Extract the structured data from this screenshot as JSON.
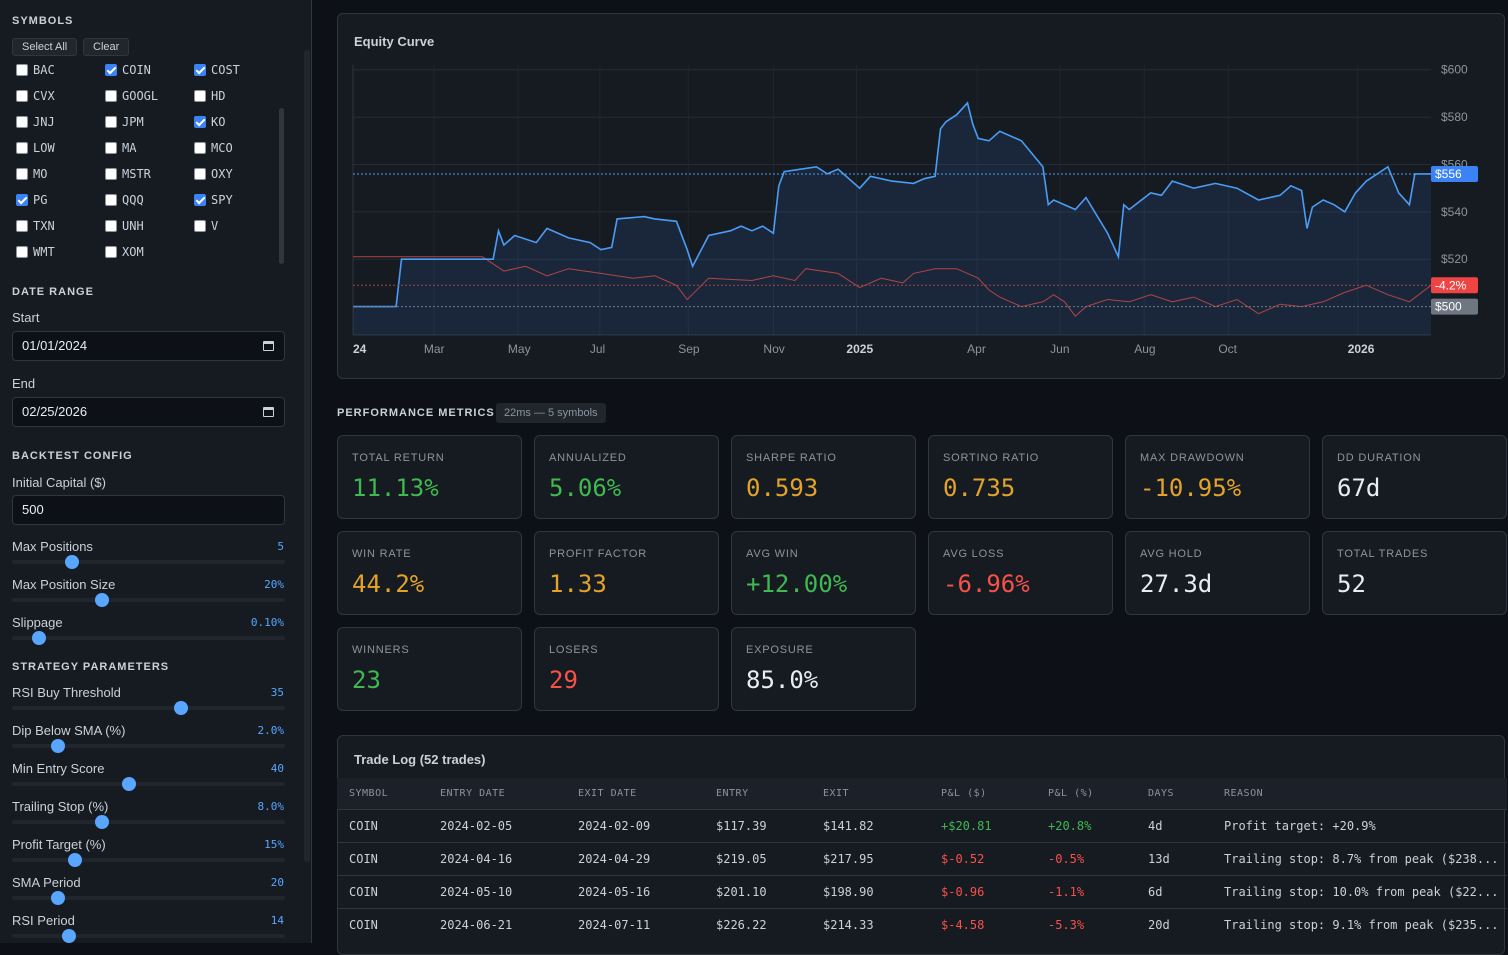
{
  "sidebar": {
    "symbols_title": "SYMBOLS",
    "select_all": "Select All",
    "clear": "Clear",
    "symbols": [
      {
        "name": "BAC",
        "checked": false
      },
      {
        "name": "COIN",
        "checked": true
      },
      {
        "name": "COST",
        "checked": true
      },
      {
        "name": "CVX",
        "checked": false
      },
      {
        "name": "GOOGL",
        "checked": false
      },
      {
        "name": "HD",
        "checked": false
      },
      {
        "name": "JNJ",
        "checked": false
      },
      {
        "name": "JPM",
        "checked": false
      },
      {
        "name": "KO",
        "checked": true
      },
      {
        "name": "LOW",
        "checked": false
      },
      {
        "name": "MA",
        "checked": false
      },
      {
        "name": "MCO",
        "checked": false
      },
      {
        "name": "MO",
        "checked": false
      },
      {
        "name": "MSTR",
        "checked": false
      },
      {
        "name": "OXY",
        "checked": false
      },
      {
        "name": "PG",
        "checked": true
      },
      {
        "name": "QQQ",
        "checked": false
      },
      {
        "name": "SPY",
        "checked": true
      },
      {
        "name": "TXN",
        "checked": false
      },
      {
        "name": "UNH",
        "checked": false
      },
      {
        "name": "V",
        "checked": false
      },
      {
        "name": "WMT",
        "checked": false
      },
      {
        "name": "XOM",
        "checked": false
      }
    ],
    "date_range_title": "DATE RANGE",
    "start_label": "Start",
    "start_value": "01/01/2024",
    "end_label": "End",
    "end_value": "02/25/2026",
    "backtest_title": "BACKTEST CONFIG",
    "capital_label": "Initial Capital ($)",
    "capital_value": "500",
    "backtest_sliders": [
      {
        "label": "Max Positions",
        "value": "5",
        "fraction": 0.22
      },
      {
        "label": "Max Position Size",
        "value": "20%",
        "fraction": 0.33
      },
      {
        "label": "Slippage",
        "value": "0.10%",
        "fraction": 0.1
      }
    ],
    "strategy_title": "STRATEGY PARAMETERS",
    "strategy_sliders": [
      {
        "label": "RSI Buy Threshold",
        "value": "35",
        "fraction": 0.62
      },
      {
        "label": "Dip Below SMA (%)",
        "value": "2.0%",
        "fraction": 0.17
      },
      {
        "label": "Min Entry Score",
        "value": "40",
        "fraction": 0.43
      },
      {
        "label": "Trailing Stop (%)",
        "value": "8.0%",
        "fraction": 0.33
      },
      {
        "label": "Profit Target (%)",
        "value": "15%",
        "fraction": 0.23
      },
      {
        "label": "SMA Period",
        "value": "20",
        "fraction": 0.17
      },
      {
        "label": "RSI Period",
        "value": "14",
        "fraction": 0.21
      }
    ]
  },
  "chart_title": "Equity Curve",
  "chart_data": {
    "type": "line",
    "title": "Equity Curve",
    "x_ticks": [
      "24",
      "Mar",
      "May",
      "Jul",
      "Sep",
      "Nov",
      "2025",
      "Apr",
      "Jun",
      "Aug",
      "Oct",
      "2026"
    ],
    "y_ticks": [
      "$600",
      "$580",
      "$560",
      "$540",
      "$520"
    ],
    "ylim": [
      488,
      602
    ],
    "series": [
      {
        "name": "Equity",
        "color": "#4b9cf5",
        "points": [
          [
            0,
            500
          ],
          [
            0.04,
            500
          ],
          [
            0.045,
            520
          ],
          [
            0.1,
            520
          ],
          [
            0.13,
            520
          ],
          [
            0.135,
            532
          ],
          [
            0.14,
            526
          ],
          [
            0.15,
            530
          ],
          [
            0.17,
            527
          ],
          [
            0.18,
            533
          ],
          [
            0.2,
            529
          ],
          [
            0.22,
            527
          ],
          [
            0.23,
            524
          ],
          [
            0.24,
            525
          ],
          [
            0.245,
            537
          ],
          [
            0.27,
            538
          ],
          [
            0.28,
            537
          ],
          [
            0.3,
            536
          ],
          [
            0.31,
            524
          ],
          [
            0.315,
            517
          ],
          [
            0.33,
            530
          ],
          [
            0.35,
            532
          ],
          [
            0.36,
            534
          ],
          [
            0.37,
            532
          ],
          [
            0.38,
            534
          ],
          [
            0.39,
            531
          ],
          [
            0.395,
            551
          ],
          [
            0.4,
            557
          ],
          [
            0.43,
            559
          ],
          [
            0.44,
            556
          ],
          [
            0.45,
            558
          ],
          [
            0.47,
            550
          ],
          [
            0.48,
            555
          ],
          [
            0.5,
            553
          ],
          [
            0.52,
            552
          ],
          [
            0.53,
            554
          ],
          [
            0.54,
            555
          ],
          [
            0.545,
            575
          ],
          [
            0.55,
            578
          ],
          [
            0.56,
            581
          ],
          [
            0.57,
            586
          ],
          [
            0.575,
            577
          ],
          [
            0.58,
            571
          ],
          [
            0.59,
            570
          ],
          [
            0.6,
            574
          ],
          [
            0.62,
            570
          ],
          [
            0.64,
            559
          ],
          [
            0.645,
            543
          ],
          [
            0.65,
            545
          ],
          [
            0.67,
            541
          ],
          [
            0.68,
            546
          ],
          [
            0.7,
            531
          ],
          [
            0.71,
            521
          ],
          [
            0.715,
            543
          ],
          [
            0.72,
            541
          ],
          [
            0.74,
            548
          ],
          [
            0.75,
            547
          ],
          [
            0.76,
            553
          ],
          [
            0.78,
            550
          ],
          [
            0.8,
            552
          ],
          [
            0.82,
            550
          ],
          [
            0.84,
            545
          ],
          [
            0.86,
            547
          ],
          [
            0.87,
            551
          ],
          [
            0.88,
            549
          ],
          [
            0.885,
            533
          ],
          [
            0.89,
            542
          ],
          [
            0.9,
            545
          ],
          [
            0.91,
            543
          ],
          [
            0.92,
            540
          ],
          [
            0.93,
            548
          ],
          [
            0.94,
            553
          ],
          [
            0.96,
            559
          ],
          [
            0.97,
            548
          ],
          [
            0.98,
            543
          ],
          [
            0.985,
            556
          ],
          [
            1.0,
            556
          ]
        ]
      },
      {
        "name": "Drawdown",
        "color": "#b04545",
        "points": [
          [
            0,
            521
          ],
          [
            0.12,
            521
          ],
          [
            0.14,
            515
          ],
          [
            0.16,
            517
          ],
          [
            0.18,
            513
          ],
          [
            0.2,
            516
          ],
          [
            0.23,
            514
          ],
          [
            0.26,
            512
          ],
          [
            0.28,
            513
          ],
          [
            0.3,
            509
          ],
          [
            0.31,
            503
          ],
          [
            0.33,
            512
          ],
          [
            0.37,
            511
          ],
          [
            0.39,
            513
          ],
          [
            0.41,
            511
          ],
          [
            0.42,
            516
          ],
          [
            0.45,
            514
          ],
          [
            0.47,
            508
          ],
          [
            0.49,
            512
          ],
          [
            0.51,
            510
          ],
          [
            0.52,
            514
          ],
          [
            0.54,
            516
          ],
          [
            0.56,
            516
          ],
          [
            0.58,
            512
          ],
          [
            0.59,
            507
          ],
          [
            0.6,
            504
          ],
          [
            0.62,
            500
          ],
          [
            0.64,
            502
          ],
          [
            0.65,
            505
          ],
          [
            0.66,
            502
          ],
          [
            0.67,
            496
          ],
          [
            0.68,
            500
          ],
          [
            0.7,
            503
          ],
          [
            0.72,
            502
          ],
          [
            0.74,
            505
          ],
          [
            0.76,
            502
          ],
          [
            0.78,
            504
          ],
          [
            0.8,
            500
          ],
          [
            0.82,
            503
          ],
          [
            0.84,
            497
          ],
          [
            0.86,
            501
          ],
          [
            0.88,
            500
          ],
          [
            0.9,
            502
          ],
          [
            0.92,
            506
          ],
          [
            0.94,
            509
          ],
          [
            0.96,
            505
          ],
          [
            0.98,
            502
          ],
          [
            1.0,
            509
          ]
        ]
      }
    ],
    "markers": [
      {
        "label": "$556",
        "value": 556,
        "color": "#3b82f6"
      },
      {
        "label": "-4.2%",
        "value": 509,
        "color": "#ef4444"
      },
      {
        "label": "$500",
        "value": 500,
        "color": "#6e7681"
      }
    ]
  },
  "metrics_title": "PERFORMANCE METRICS",
  "metrics_badge": "22ms — 5 symbols",
  "metrics": [
    {
      "label": "TOTAL RETURN",
      "value": "11.13%",
      "color": "green"
    },
    {
      "label": "ANNUALIZED",
      "value": "5.06%",
      "color": "green"
    },
    {
      "label": "SHARPE RATIO",
      "value": "0.593",
      "color": "orange"
    },
    {
      "label": "SORTINO RATIO",
      "value": "0.735",
      "color": "orange"
    },
    {
      "label": "MAX DRAWDOWN",
      "value": "-10.95%",
      "color": "orange"
    },
    {
      "label": "DD DURATION",
      "value": "67d",
      "color": "white"
    },
    {
      "label": "WIN RATE",
      "value": "44.2%",
      "color": "orange"
    },
    {
      "label": "PROFIT FACTOR",
      "value": "1.33",
      "color": "orange"
    },
    {
      "label": "AVG WIN",
      "value": "+12.00%",
      "color": "green"
    },
    {
      "label": "AVG LOSS",
      "value": "-6.96%",
      "color": "red"
    },
    {
      "label": "AVG HOLD",
      "value": "27.3d",
      "color": "white"
    },
    {
      "label": "TOTAL TRADES",
      "value": "52",
      "color": "white"
    },
    {
      "label": "WINNERS",
      "value": "23",
      "color": "green"
    },
    {
      "label": "LOSERS",
      "value": "29",
      "color": "red"
    },
    {
      "label": "EXPOSURE",
      "value": "85.0%",
      "color": "white"
    }
  ],
  "trade_log": {
    "title": "Trade Log (52 trades)",
    "columns": [
      "SYMBOL",
      "ENTRY DATE",
      "EXIT DATE",
      "ENTRY",
      "EXIT",
      "P&L ($)",
      "P&L (%)",
      "DAYS",
      "REASON"
    ],
    "rows": [
      [
        "COIN",
        "2024-02-05",
        "2024-02-09",
        "$117.39",
        "$141.82",
        "+$20.81",
        "+20.8%",
        "4d",
        "Profit target: +20.9%"
      ],
      [
        "COIN",
        "2024-04-16",
        "2024-04-29",
        "$219.05",
        "$217.95",
        "$-0.52",
        "-0.5%",
        "13d",
        "Trailing stop: 8.7% from peak ($238..."
      ],
      [
        "COIN",
        "2024-05-10",
        "2024-05-16",
        "$201.10",
        "$198.90",
        "$-0.96",
        "-1.1%",
        "6d",
        "Trailing stop: 10.0% from peak ($22..."
      ],
      [
        "COIN",
        "2024-06-21",
        "2024-07-11",
        "$226.22",
        "$214.33",
        "$-4.58",
        "-5.3%",
        "20d",
        "Trailing stop: 9.1% from peak ($235..."
      ]
    ]
  }
}
